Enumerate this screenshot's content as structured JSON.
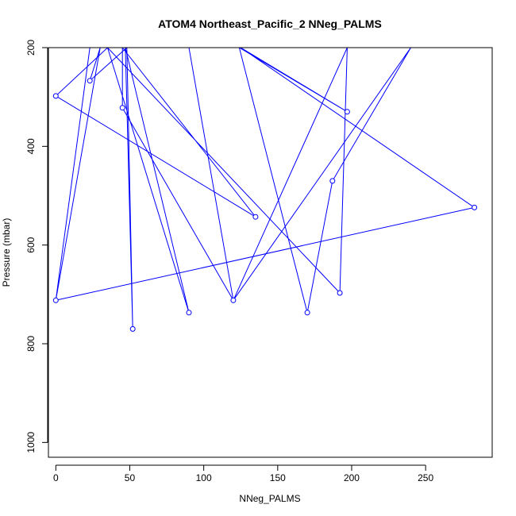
{
  "chart_data": {
    "type": "line",
    "title": "ATOM4 Northeast_Pacific_2 NNeg_PALMS",
    "xlabel": "NNeg_PALMS",
    "ylabel": "Pressure (mbar)",
    "xlim": [
      -5,
      295
    ],
    "ylim": [
      1030,
      200
    ],
    "y_reversed": true,
    "x_ticks": [
      0,
      50,
      100,
      150,
      200,
      250
    ],
    "y_ticks": [
      200,
      400,
      600,
      800,
      1000
    ],
    "grid": false,
    "legend": "none",
    "color": "#0000ff",
    "series": [
      {
        "points": [
          {
            "x": 0,
            "y": 712
          },
          {
            "x": 283,
            "y": 524
          },
          {
            "x": 125,
            "y": 200
          },
          {
            "x": 197,
            "y": 330
          },
          {
            "x": 124,
            "y": 200
          },
          {
            "x": 170,
            "y": 737
          },
          {
            "x": 187,
            "y": 470
          },
          {
            "x": 240,
            "y": 200
          },
          {
            "x": 120,
            "y": 712
          },
          {
            "x": 197,
            "y": 200
          },
          {
            "x": 192,
            "y": 697
          },
          {
            "x": 35,
            "y": 200
          },
          {
            "x": 90,
            "y": 737
          },
          {
            "x": 47,
            "y": 200
          },
          {
            "x": 52,
            "y": 770
          },
          {
            "x": 48,
            "y": 200
          },
          {
            "x": 23,
            "y": 267
          },
          {
            "x": 30,
            "y": 200
          },
          {
            "x": 0,
            "y": 712
          },
          {
            "x": 23,
            "y": 200
          },
          {
            "x": 35,
            "y": 200
          },
          {
            "x": 0,
            "y": 298
          },
          {
            "x": 135,
            "y": 543
          },
          {
            "x": 45,
            "y": 200
          },
          {
            "x": 45,
            "y": 322
          },
          {
            "x": 120,
            "y": 712
          },
          {
            "x": 90,
            "y": 200
          },
          {
            "x": 200,
            "y": 200
          }
        ],
        "markers": [
          {
            "x": 0,
            "y": 712
          },
          {
            "x": 283,
            "y": 524
          },
          {
            "x": 197,
            "y": 330
          },
          {
            "x": 170,
            "y": 737
          },
          {
            "x": 187,
            "y": 470
          },
          {
            "x": 120,
            "y": 712
          },
          {
            "x": 192,
            "y": 697
          },
          {
            "x": 90,
            "y": 737
          },
          {
            "x": 52,
            "y": 770
          },
          {
            "x": 23,
            "y": 267
          },
          {
            "x": 0,
            "y": 298
          },
          {
            "x": 135,
            "y": 543
          },
          {
            "x": 45,
            "y": 322
          }
        ]
      }
    ]
  }
}
